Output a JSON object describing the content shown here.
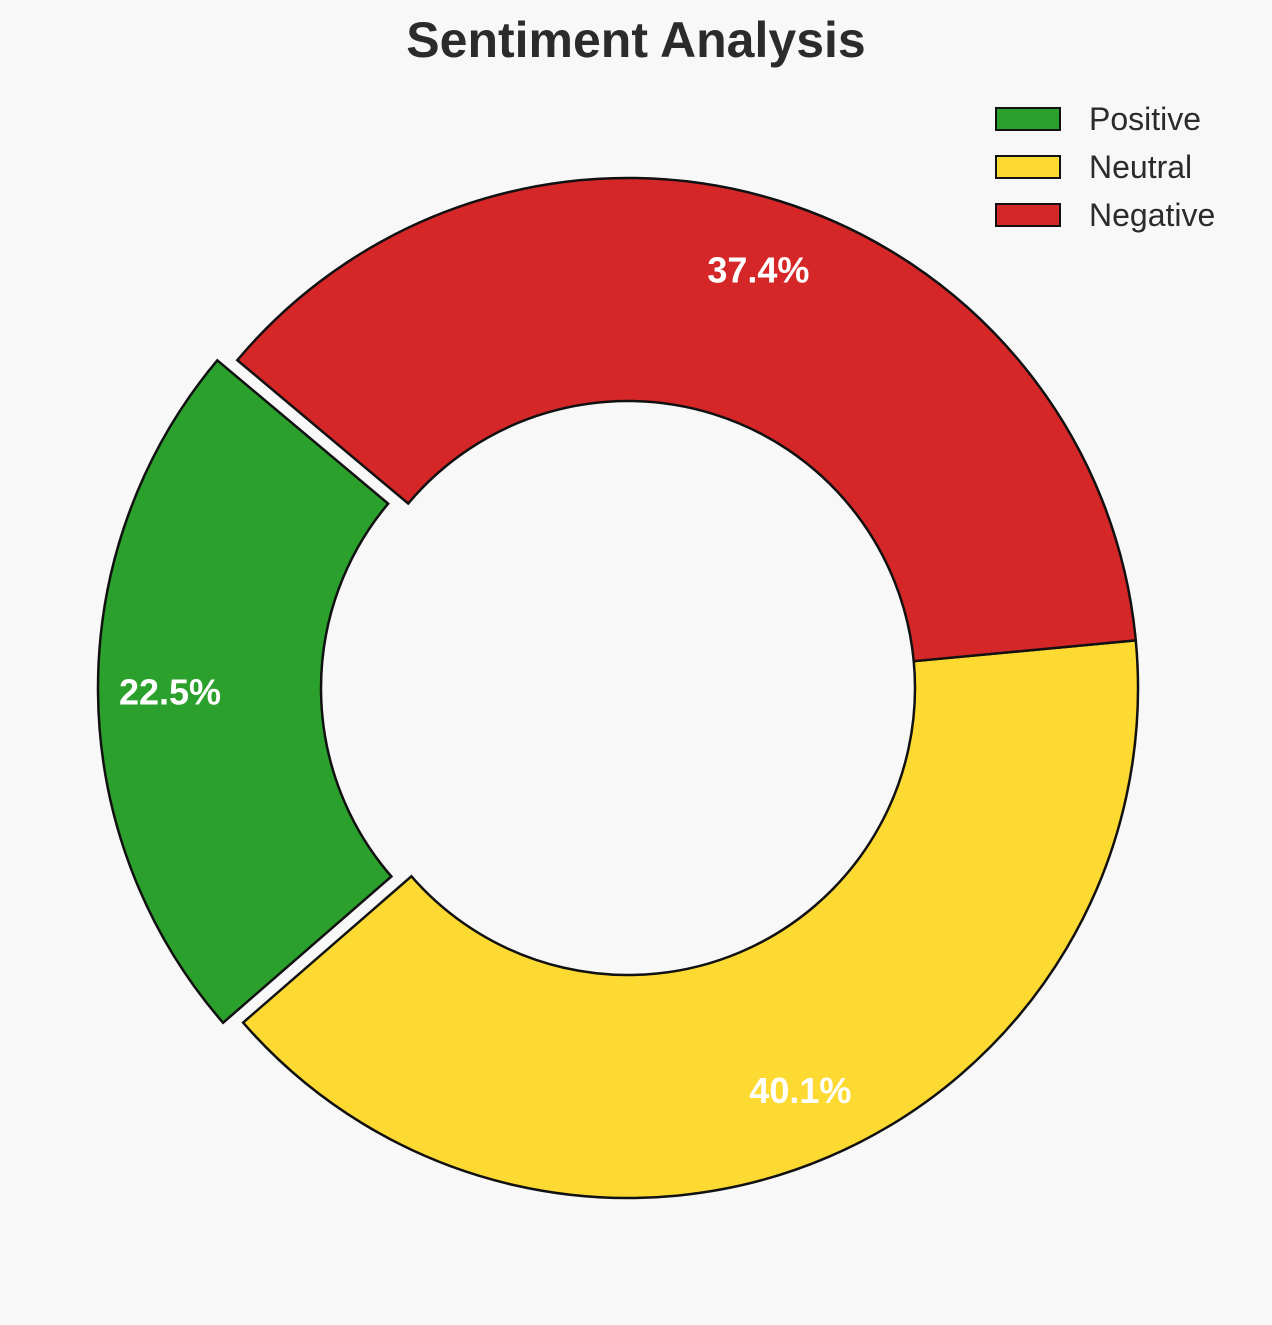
{
  "chart_data": {
    "type": "pie",
    "variant": "donut",
    "title": "Sentiment Analysis",
    "legend_position": "top-right",
    "slices": [
      {
        "name": "Positive",
        "value": 22.5,
        "label": "22.5%",
        "color": "#2ca02c",
        "exploded": true
      },
      {
        "name": "Neutral",
        "value": 40.1,
        "label": "40.1%",
        "color": "#fdda32",
        "exploded": false
      },
      {
        "name": "Negative",
        "value": 37.4,
        "label": "37.4%",
        "color": "#d62728",
        "exploded": false
      }
    ],
    "label_color": "#ffffff",
    "edge_color": "#111111",
    "background": "#f8f8f8"
  }
}
